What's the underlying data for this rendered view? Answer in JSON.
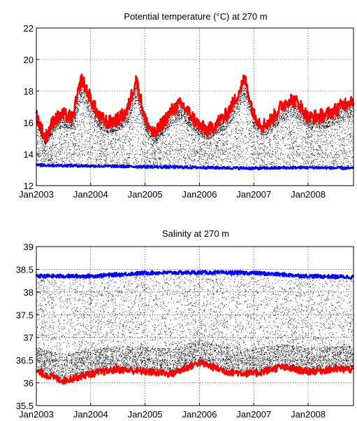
{
  "chart_data": [
    {
      "type": "scatter",
      "title": "Potential temperature (°C) at 270 m",
      "xlabel": "",
      "ylabel": "",
      "x_range": [
        "2003-01-01",
        "2008-11-01"
      ],
      "x_ticks": [
        "2003-01-01",
        "2004-01-01",
        "2005-01-01",
        "2006-01-01",
        "2007-01-01",
        "2008-01-01"
      ],
      "x_tick_labels": [
        "Jan2003",
        "Jan2004",
        "Jan2005",
        "Jan2006",
        "Jan2007",
        "Jan2008"
      ],
      "ylim": [
        12,
        22
      ],
      "y_ticks": [
        12,
        14,
        16,
        18,
        20,
        22
      ],
      "grid": true,
      "series": [
        {
          "color": "#ff0000",
          "x": [
            "2003-01-01",
            "2003-03-01",
            "2003-05-01",
            "2003-07-01",
            "2003-09-01",
            "2003-11-01",
            "2004-01-01",
            "2004-03-01",
            "2004-05-01",
            "2004-07-01",
            "2004-09-01",
            "2004-11-01",
            "2005-01-01",
            "2005-03-01",
            "2005-05-01",
            "2005-07-01",
            "2005-09-01",
            "2005-11-01",
            "2006-01-01",
            "2006-03-01",
            "2006-05-01",
            "2006-07-01",
            "2006-09-01",
            "2006-11-01",
            "2007-01-01",
            "2007-03-01",
            "2007-05-01",
            "2007-07-01",
            "2007-09-01",
            "2007-11-01",
            "2008-01-01",
            "2008-03-01",
            "2008-05-01",
            "2008-07-01",
            "2008-09-01",
            "2008-11-01"
          ],
          "y": [
            16.5,
            15.0,
            16.2,
            16.5,
            16.3,
            18.8,
            17.5,
            16.3,
            16.0,
            16.2,
            16.7,
            18.8,
            16.2,
            15.2,
            16.0,
            16.8,
            17.2,
            16.5,
            15.8,
            15.5,
            16.0,
            16.5,
            17.5,
            18.8,
            16.5,
            15.8,
            16.2,
            17.0,
            17.5,
            17.2,
            16.3,
            16.4,
            16.5,
            16.8,
            17.2,
            17.5
          ]
        },
        {
          "color": "#0000ff",
          "x": [
            "2003-01-01",
            "2004-01-01",
            "2005-01-01",
            "2006-01-01",
            "2007-01-01",
            "2008-01-01",
            "2008-11-01"
          ],
          "y": [
            13.3,
            13.25,
            13.2,
            13.15,
            13.1,
            13.15,
            13.1
          ]
        },
        {
          "color": "#000000",
          "marker": "dot",
          "y_range_per_time": [
            13.2,
            17.0
          ],
          "dense_band": [
            14.0,
            16.0
          ]
        }
      ]
    },
    {
      "type": "scatter",
      "title": "Salinity at 270 m",
      "xlabel": "",
      "ylabel": "",
      "x_range": [
        "2003-01-01",
        "2008-11-01"
      ],
      "x_ticks": [
        "2003-01-01",
        "2004-01-01",
        "2005-01-01",
        "2006-01-01",
        "2007-01-01",
        "2008-01-01"
      ],
      "x_tick_labels": [
        "Jan2003",
        "Jan2004",
        "Jan2005",
        "Jan2006",
        "Jan2007",
        "Jan2008"
      ],
      "ylim": [
        35.5,
        39
      ],
      "y_ticks": [
        35.5,
        36,
        36.5,
        37,
        37.5,
        38,
        38.5,
        39
      ],
      "y_tick_labels": [
        "35.5",
        "36",
        "36.5",
        "37",
        "37.5",
        "38",
        "38.5",
        "39"
      ],
      "grid": true,
      "series": [
        {
          "color": "#0000ff",
          "x": [
            "2003-01-01",
            "2004-01-01",
            "2005-01-01",
            "2006-01-01",
            "2007-01-01",
            "2008-01-01",
            "2008-11-01"
          ],
          "y": [
            38.35,
            38.35,
            38.42,
            38.43,
            38.42,
            38.35,
            38.33
          ]
        },
        {
          "color": "#ff0000",
          "x": [
            "2003-01-01",
            "2003-07-01",
            "2004-01-01",
            "2004-07-01",
            "2005-01-01",
            "2005-07-01",
            "2006-01-01",
            "2006-07-01",
            "2007-01-01",
            "2007-07-01",
            "2008-01-01",
            "2008-07-01",
            "2008-11-01"
          ],
          "y": [
            36.25,
            36.05,
            36.2,
            36.3,
            36.25,
            36.2,
            36.45,
            36.25,
            36.2,
            36.35,
            36.25,
            36.3,
            36.3
          ]
        },
        {
          "color": "#000000",
          "marker": "dot",
          "y_range_per_time": [
            36.0,
            38.4
          ],
          "dense_band": [
            36.2,
            36.7
          ]
        }
      ]
    }
  ]
}
